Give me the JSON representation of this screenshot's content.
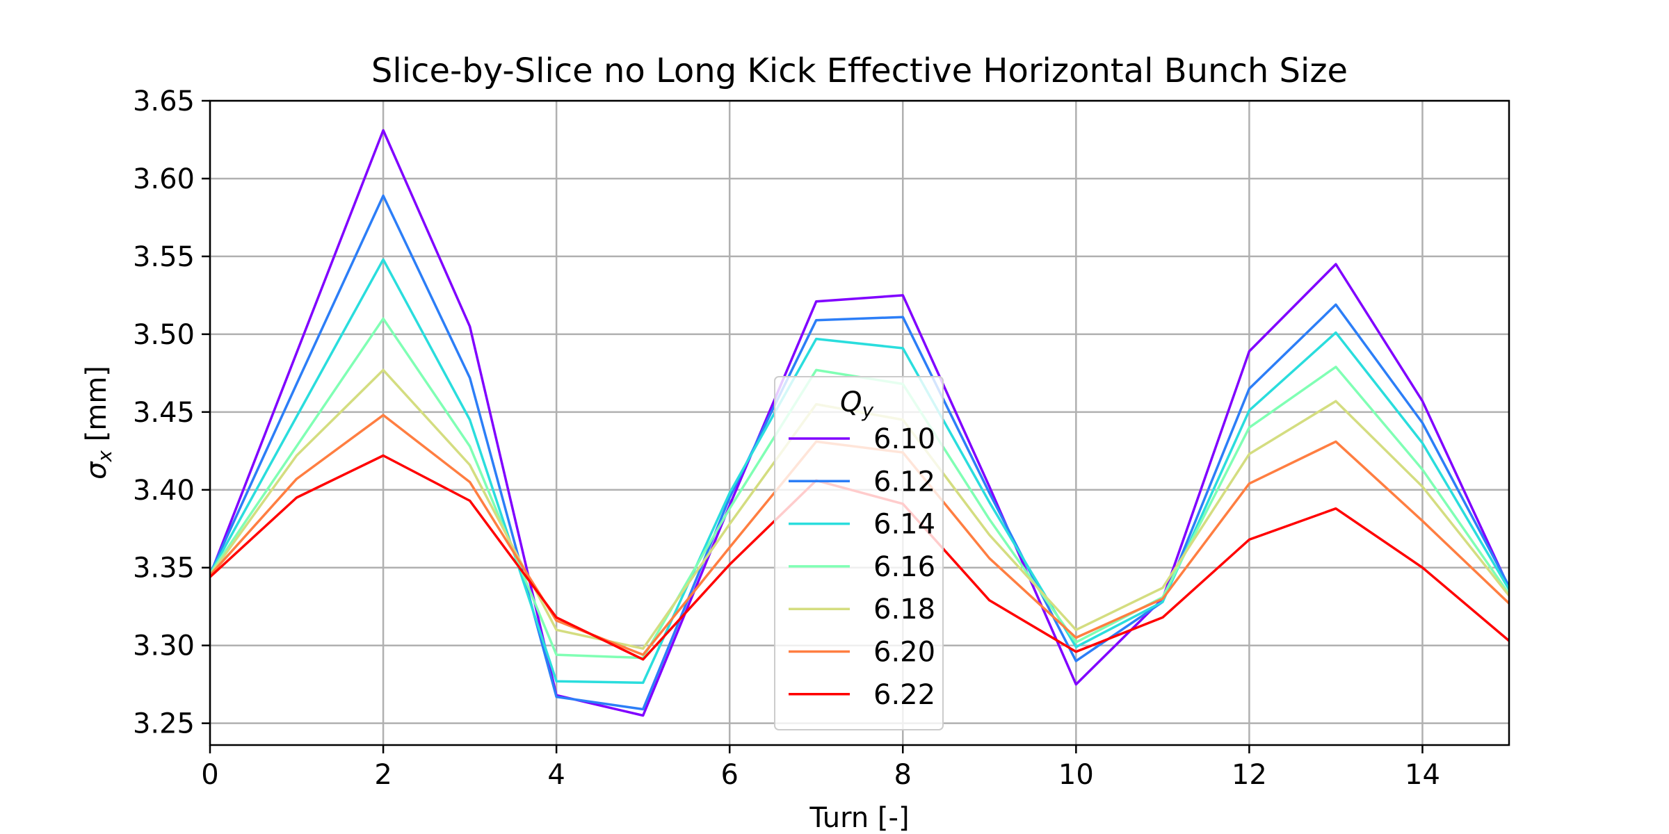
{
  "chart_data": {
    "type": "line",
    "title": "Slice-by-Slice no Long Kick Effective Horizontal Bunch Size",
    "xlabel": "Turn [-]",
    "ylabel_symbol": "σ",
    "ylabel_subscript": "x",
    "ylabel_unit": " [mm]",
    "xlim": [
      0,
      15
    ],
    "ylim": [
      3.236,
      3.65
    ],
    "x_ticks": [
      0,
      2,
      4,
      6,
      8,
      10,
      12,
      14
    ],
    "x_tick_labels": [
      "0",
      "2",
      "4",
      "6",
      "8",
      "10",
      "12",
      "14"
    ],
    "y_ticks": [
      3.25,
      3.3,
      3.35,
      3.4,
      3.45,
      3.5,
      3.55,
      3.6,
      3.65
    ],
    "y_tick_labels": [
      "3.25",
      "3.30",
      "3.35",
      "3.40",
      "3.45",
      "3.50",
      "3.55",
      "3.60",
      "3.65"
    ],
    "grid": true,
    "legend": {
      "title_symbol": "Q",
      "title_subscript": "y",
      "placement": "center"
    },
    "x": [
      0,
      1,
      2,
      3,
      4,
      5,
      6,
      7,
      8,
      9,
      10,
      11,
      12,
      13,
      14,
      15
    ],
    "series": [
      {
        "name": "6.10",
        "color": "#8000ff",
        "values": [
          3.345,
          3.488,
          3.631,
          3.505,
          3.268,
          3.255,
          3.39,
          3.521,
          3.525,
          3.402,
          3.275,
          3.33,
          3.489,
          3.545,
          3.457,
          3.337
        ]
      },
      {
        "name": "6.12",
        "color": "#2c7ef7",
        "values": [
          3.346,
          3.468,
          3.589,
          3.472,
          3.267,
          3.259,
          3.395,
          3.509,
          3.511,
          3.398,
          3.29,
          3.328,
          3.465,
          3.519,
          3.443,
          3.338
        ]
      },
      {
        "name": "6.14",
        "color": "#2adddd",
        "values": [
          3.346,
          3.447,
          3.548,
          3.445,
          3.277,
          3.276,
          3.398,
          3.497,
          3.491,
          3.392,
          3.299,
          3.328,
          3.451,
          3.501,
          3.43,
          3.336
        ]
      },
      {
        "name": "6.16",
        "color": "#80ffb4",
        "values": [
          3.346,
          3.428,
          3.51,
          3.428,
          3.294,
          3.292,
          3.388,
          3.477,
          3.468,
          3.381,
          3.302,
          3.331,
          3.44,
          3.479,
          3.413,
          3.333
        ]
      },
      {
        "name": "6.18",
        "color": "#d4dd80",
        "values": [
          3.345,
          3.422,
          3.477,
          3.416,
          3.31,
          3.298,
          3.378,
          3.455,
          3.445,
          3.371,
          3.31,
          3.337,
          3.423,
          3.457,
          3.402,
          3.332
        ]
      },
      {
        "name": "6.20",
        "color": "#ff7e41",
        "values": [
          3.345,
          3.407,
          3.448,
          3.405,
          3.316,
          3.294,
          3.363,
          3.431,
          3.424,
          3.356,
          3.305,
          3.33,
          3.404,
          3.431,
          3.38,
          3.327
        ]
      },
      {
        "name": "6.22",
        "color": "#ff0000",
        "values": [
          3.344,
          3.395,
          3.422,
          3.393,
          3.318,
          3.291,
          3.352,
          3.406,
          3.391,
          3.329,
          3.296,
          3.318,
          3.368,
          3.388,
          3.35,
          3.303
        ]
      }
    ]
  }
}
